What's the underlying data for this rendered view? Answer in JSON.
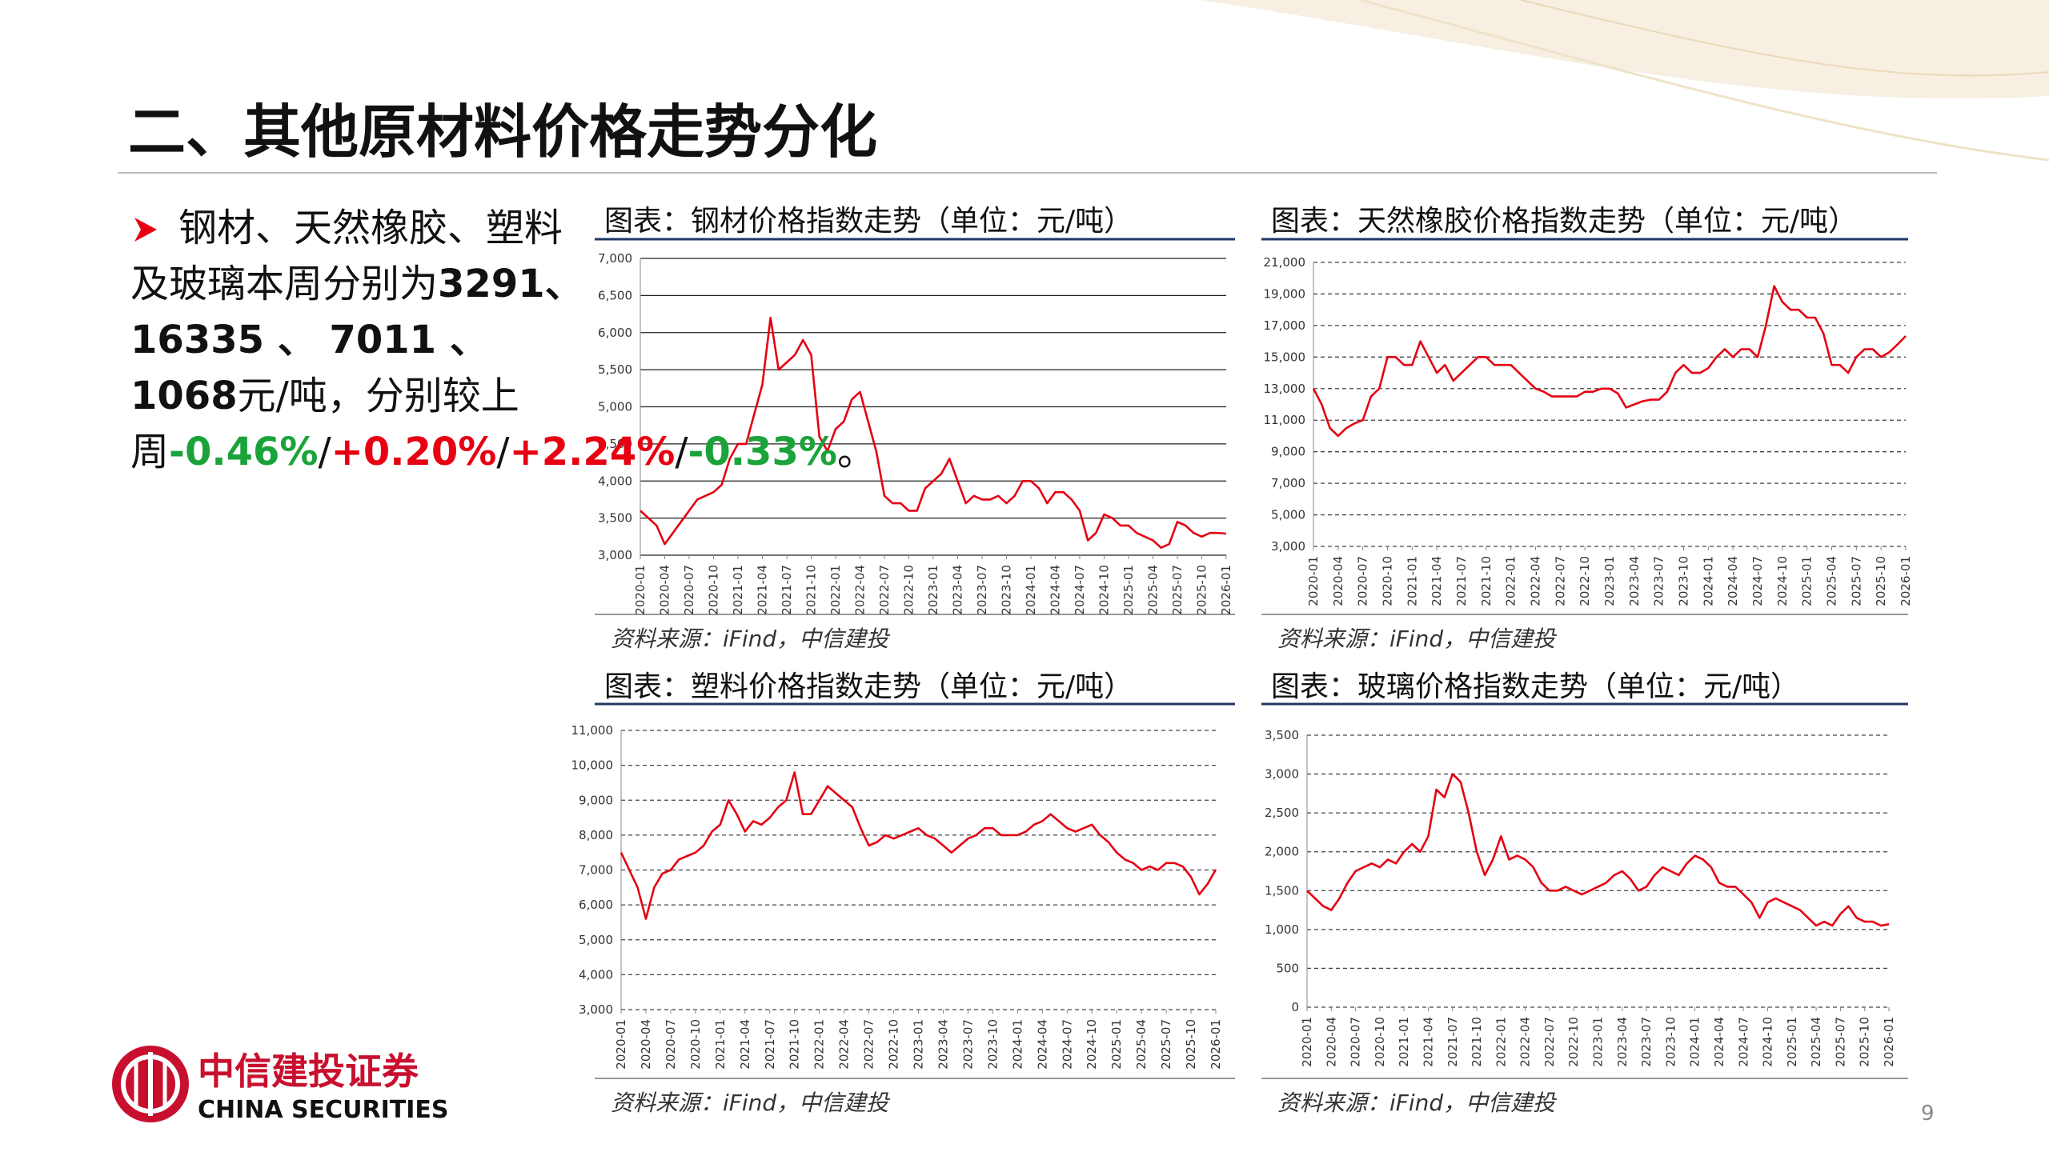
{
  "header": {
    "title": "二、其他原材料价格走势分化"
  },
  "summary": {
    "parts": [
      {
        "text": "钢材、天然橡胶、塑料及玻璃本周分别为",
        "style": "normal"
      },
      {
        "text": "3291、 16335 、 7011 、 1068",
        "style": "bold"
      },
      {
        "text": "元/吨，分别较上周",
        "style": "normal"
      },
      {
        "text": "-0.46%",
        "style": "green"
      },
      {
        "text": "/",
        "style": "normal"
      },
      {
        "text": "+0.20%",
        "style": "red"
      },
      {
        "text": "/",
        "style": "normal"
      },
      {
        "text": "+2.24%",
        "style": "red"
      },
      {
        "text": "/",
        "style": "normal"
      },
      {
        "text": "-0.33%",
        "style": "green"
      },
      {
        "text": "。",
        "style": "normal"
      }
    ]
  },
  "chart_data": [
    {
      "type": "line",
      "title": "图表：钢材价格指数走势（单位：元/吨）",
      "source": "资料来源：iFind，中信建投",
      "color": "#e60012",
      "grid": true,
      "grid_style": "solid",
      "x": [
        "2020-01",
        "2020-02",
        "2020-03",
        "2020-04",
        "2020-05",
        "2020-06",
        "2020-07",
        "2020-08",
        "2020-09",
        "2020-10",
        "2020-11",
        "2020-12",
        "2021-01",
        "2021-02",
        "2021-03",
        "2021-04",
        "2021-05",
        "2021-06",
        "2021-07",
        "2021-08",
        "2021-09",
        "2021-10",
        "2021-11",
        "2021-12",
        "2022-01",
        "2022-02",
        "2022-03",
        "2022-04",
        "2022-05",
        "2022-06",
        "2022-07",
        "2022-08",
        "2022-09",
        "2022-10",
        "2022-11",
        "2022-12",
        "2023-01",
        "2023-02",
        "2023-03",
        "2023-04",
        "2023-05",
        "2023-06",
        "2023-07",
        "2023-08",
        "2023-09",
        "2023-10",
        "2023-11",
        "2023-12",
        "2024-01",
        "2024-02",
        "2024-03",
        "2024-04",
        "2024-05",
        "2024-06",
        "2024-07",
        "2024-08",
        "2024-09",
        "2024-10",
        "2024-11",
        "2024-12",
        "2025-01",
        "2025-02",
        "2025-03",
        "2025-04",
        "2025-05",
        "2025-06",
        "2025-07",
        "2025-08",
        "2025-09",
        "2025-10",
        "2025-11",
        "2025-12",
        "2026-01"
      ],
      "values": [
        3600,
        3500,
        3400,
        3150,
        3300,
        3450,
        3600,
        3750,
        3800,
        3850,
        3950,
        4300,
        4500,
        4500,
        4900,
        5300,
        6200,
        5500,
        5600,
        5700,
        5900,
        5700,
        4600,
        4400,
        4700,
        4800,
        5100,
        5200,
        4800,
        4400,
        3800,
        3700,
        3700,
        3600,
        3600,
        3900,
        4000,
        4100,
        4300,
        4000,
        3700,
        3800,
        3750,
        3750,
        3800,
        3700,
        3800,
        4000,
        4000,
        3900,
        3700,
        3850,
        3850,
        3750,
        3600,
        3200,
        3300,
        3550,
        3500,
        3400,
        3400,
        3300,
        3250,
        3200,
        3100,
        3150,
        3450,
        3400,
        3300,
        3250,
        3300,
        3300,
        3291
      ],
      "xticks": [
        "2020-01",
        "2020-04",
        "2020-07",
        "2020-10",
        "2021-01",
        "2021-04",
        "2021-07",
        "2021-10",
        "2022-01",
        "2022-04",
        "2022-07",
        "2022-10",
        "2023-01",
        "2023-04",
        "2023-07",
        "2023-10",
        "2024-01",
        "2024-04",
        "2024-07",
        "2024-10",
        "2025-01",
        "2025-04",
        "2025-07",
        "2025-10",
        "2026-01"
      ],
      "ylim": [
        3000,
        7000
      ],
      "yticks": [
        {
          "value": 3000,
          "label": "3,000"
        },
        {
          "value": 3500,
          "label": "3,500"
        },
        {
          "value": 4000,
          "label": "4,000"
        },
        {
          "value": 4500,
          "label": "4,500"
        },
        {
          "value": 5000,
          "label": "5,000"
        },
        {
          "value": 5500,
          "label": "5,500"
        },
        {
          "value": 6000,
          "label": "6,000"
        },
        {
          "value": 6500,
          "label": "6,500"
        },
        {
          "value": 7000,
          "label": "7,000"
        }
      ]
    },
    {
      "type": "line",
      "title": "图表：天然橡胶价格指数走势（单位：元/吨）",
      "source": "资料来源：iFind，中信建投",
      "color": "#e60012",
      "grid": true,
      "grid_style": "dashed",
      "x": [
        "2020-01",
        "2020-02",
        "2020-03",
        "2020-04",
        "2020-05",
        "2020-06",
        "2020-07",
        "2020-08",
        "2020-09",
        "2020-10",
        "2020-11",
        "2020-12",
        "2021-01",
        "2021-02",
        "2021-03",
        "2021-04",
        "2021-05",
        "2021-06",
        "2021-07",
        "2021-08",
        "2021-09",
        "2021-10",
        "2021-11",
        "2021-12",
        "2022-01",
        "2022-02",
        "2022-03",
        "2022-04",
        "2022-05",
        "2022-06",
        "2022-07",
        "2022-08",
        "2022-09",
        "2022-10",
        "2022-11",
        "2022-12",
        "2023-01",
        "2023-02",
        "2023-03",
        "2023-04",
        "2023-05",
        "2023-06",
        "2023-07",
        "2023-08",
        "2023-09",
        "2023-10",
        "2023-11",
        "2023-12",
        "2024-01",
        "2024-02",
        "2024-03",
        "2024-04",
        "2024-05",
        "2024-06",
        "2024-07",
        "2024-08",
        "2024-09",
        "2024-10",
        "2024-11",
        "2024-12",
        "2025-01",
        "2025-02",
        "2025-03",
        "2025-04",
        "2025-05",
        "2025-06",
        "2025-07",
        "2025-08",
        "2025-09",
        "2025-10",
        "2025-11",
        "2025-12",
        "2026-01"
      ],
      "values": [
        13000,
        12000,
        10500,
        10000,
        10500,
        10800,
        11000,
        12500,
        13000,
        15000,
        15000,
        14500,
        14500,
        16000,
        15000,
        14000,
        14500,
        13500,
        14000,
        14500,
        15000,
        15000,
        14500,
        14500,
        14500,
        14000,
        13500,
        13000,
        12800,
        12500,
        12500,
        12500,
        12500,
        12800,
        12800,
        13000,
        13000,
        12700,
        11800,
        12000,
        12200,
        12300,
        12300,
        12800,
        14000,
        14500,
        14000,
        14000,
        14300,
        15000,
        15500,
        15000,
        15500,
        15500,
        15000,
        17000,
        19500,
        18500,
        18000,
        18000,
        17500,
        17500,
        16500,
        14500,
        14500,
        14000,
        15000,
        15500,
        15500,
        15000,
        15300,
        15800,
        16335
      ],
      "xticks": [
        "2020-01",
        "2020-04",
        "2020-07",
        "2020-10",
        "2021-01",
        "2021-04",
        "2021-07",
        "2021-10",
        "2022-01",
        "2022-04",
        "2022-07",
        "2022-10",
        "2023-01",
        "2023-04",
        "2023-07",
        "2023-10",
        "2024-01",
        "2024-04",
        "2024-07",
        "2024-10",
        "2025-01",
        "2025-04",
        "2025-07",
        "2025-10",
        "2026-01"
      ],
      "ylim": [
        3000,
        21000
      ],
      "yticks": [
        {
          "value": 3000,
          "label": "3,000"
        },
        {
          "value": 5000,
          "label": "5,000"
        },
        {
          "value": 7000,
          "label": "7,000"
        },
        {
          "value": 9000,
          "label": "9,000"
        },
        {
          "value": 11000,
          "label": "11,000"
        },
        {
          "value": 13000,
          "label": "13,000"
        },
        {
          "value": 15000,
          "label": "15,000"
        },
        {
          "value": 17000,
          "label": "17,000"
        },
        {
          "value": 19000,
          "label": "19,000"
        },
        {
          "value": 21000,
          "label": "21,000"
        }
      ]
    },
    {
      "type": "line",
      "title": "图表：塑料价格指数走势（单位：元/吨）",
      "source": "资料来源：iFind，中信建投",
      "color": "#e60012",
      "grid": true,
      "grid_style": "dashed",
      "x": [
        "2020-01",
        "2020-02",
        "2020-03",
        "2020-04",
        "2020-05",
        "2020-06",
        "2020-07",
        "2020-08",
        "2020-09",
        "2020-10",
        "2020-11",
        "2020-12",
        "2021-01",
        "2021-02",
        "2021-03",
        "2021-04",
        "2021-05",
        "2021-06",
        "2021-07",
        "2021-08",
        "2021-09",
        "2021-10",
        "2021-11",
        "2021-12",
        "2022-01",
        "2022-02",
        "2022-03",
        "2022-04",
        "2022-05",
        "2022-06",
        "2022-07",
        "2022-08",
        "2022-09",
        "2022-10",
        "2022-11",
        "2022-12",
        "2023-01",
        "2023-02",
        "2023-03",
        "2023-04",
        "2023-05",
        "2023-06",
        "2023-07",
        "2023-08",
        "2023-09",
        "2023-10",
        "2023-11",
        "2023-12",
        "2024-01",
        "2024-02",
        "2024-03",
        "2024-04",
        "2024-05",
        "2024-06",
        "2024-07",
        "2024-08",
        "2024-09",
        "2024-10",
        "2024-11",
        "2024-12",
        "2025-01",
        "2025-02",
        "2025-03",
        "2025-04",
        "2025-05",
        "2025-06",
        "2025-07",
        "2025-08",
        "2025-09",
        "2025-10",
        "2025-11",
        "2025-12",
        "2026-01"
      ],
      "values": [
        7500,
        7000,
        6500,
        5600,
        6500,
        6900,
        7000,
        7300,
        7400,
        7500,
        7700,
        8100,
        8300,
        9000,
        8600,
        8100,
        8400,
        8300,
        8500,
        8800,
        9000,
        9800,
        8600,
        8600,
        9000,
        9400,
        9200,
        9000,
        8800,
        8200,
        7700,
        7800,
        8000,
        7900,
        8000,
        8100,
        8200,
        8000,
        7900,
        7700,
        7500,
        7700,
        7900,
        8000,
        8200,
        8200,
        8000,
        8000,
        8000,
        8100,
        8300,
        8400,
        8600,
        8400,
        8200,
        8100,
        8200,
        8300,
        8000,
        7800,
        7500,
        7300,
        7200,
        7000,
        7100,
        7000,
        7200,
        7200,
        7100,
        6800,
        6300,
        6600,
        7011
      ],
      "xticks": [
        "2020-01",
        "2020-04",
        "2020-07",
        "2020-10",
        "2021-01",
        "2021-04",
        "2021-07",
        "2021-10",
        "2022-01",
        "2022-04",
        "2022-07",
        "2022-10",
        "2023-01",
        "2023-04",
        "2023-07",
        "2023-10",
        "2024-01",
        "2024-04",
        "2024-07",
        "2024-10",
        "2025-01",
        "2025-04",
        "2025-07",
        "2025-10",
        "2026-01"
      ],
      "ylim": [
        3000,
        11000
      ],
      "yticks": [
        {
          "value": 3000,
          "label": "3,000"
        },
        {
          "value": 4000,
          "label": "4,000"
        },
        {
          "value": 5000,
          "label": "5,000"
        },
        {
          "value": 6000,
          "label": "6,000"
        },
        {
          "value": 7000,
          "label": "7,000"
        },
        {
          "value": 8000,
          "label": "8,000"
        },
        {
          "value": 9000,
          "label": "9,000"
        },
        {
          "value": 10000,
          "label": "10,000"
        },
        {
          "value": 11000,
          "label": "11,000"
        }
      ]
    },
    {
      "type": "line",
      "title": "图表：玻璃价格指数走势（单位：元/吨）",
      "source": "资料来源：iFind，中信建投",
      "color": "#e60012",
      "grid": true,
      "grid_style": "dashed",
      "x": [
        "2020-01",
        "2020-02",
        "2020-03",
        "2020-04",
        "2020-05",
        "2020-06",
        "2020-07",
        "2020-08",
        "2020-09",
        "2020-10",
        "2020-11",
        "2020-12",
        "2021-01",
        "2021-02",
        "2021-03",
        "2021-04",
        "2021-05",
        "2021-06",
        "2021-07",
        "2021-08",
        "2021-09",
        "2021-10",
        "2021-11",
        "2021-12",
        "2022-01",
        "2022-02",
        "2022-03",
        "2022-04",
        "2022-05",
        "2022-06",
        "2022-07",
        "2022-08",
        "2022-09",
        "2022-10",
        "2022-11",
        "2022-12",
        "2023-01",
        "2023-02",
        "2023-03",
        "2023-04",
        "2023-05",
        "2023-06",
        "2023-07",
        "2023-08",
        "2023-09",
        "2023-10",
        "2023-11",
        "2023-12",
        "2024-01",
        "2024-02",
        "2024-03",
        "2024-04",
        "2024-05",
        "2024-06",
        "2024-07",
        "2024-08",
        "2024-09",
        "2024-10",
        "2024-11",
        "2024-12",
        "2025-01",
        "2025-02",
        "2025-03",
        "2025-04",
        "2025-05",
        "2025-06",
        "2025-07",
        "2025-08",
        "2025-09",
        "2025-10",
        "2025-11",
        "2025-12",
        "2026-01"
      ],
      "values": [
        1500,
        1400,
        1300,
        1250,
        1400,
        1600,
        1750,
        1800,
        1850,
        1800,
        1900,
        1850,
        2000,
        2100,
        2000,
        2200,
        2800,
        2700,
        3000,
        2900,
        2500,
        2000,
        1700,
        1900,
        2200,
        1900,
        1950,
        1900,
        1800,
        1600,
        1500,
        1500,
        1550,
        1500,
        1450,
        1500,
        1550,
        1600,
        1700,
        1750,
        1650,
        1500,
        1550,
        1700,
        1800,
        1750,
        1700,
        1850,
        1950,
        1900,
        1800,
        1600,
        1550,
        1550,
        1450,
        1350,
        1150,
        1350,
        1400,
        1350,
        1300,
        1250,
        1150,
        1050,
        1100,
        1050,
        1200,
        1300,
        1150,
        1100,
        1100,
        1050,
        1068
      ],
      "xticks": [
        "2020-01",
        "2020-04",
        "2020-07",
        "2020-10",
        "2021-01",
        "2021-04",
        "2021-07",
        "2021-10",
        "2022-01",
        "2022-04",
        "2022-07",
        "2022-10",
        "2023-01",
        "2023-04",
        "2023-07",
        "2023-10",
        "2024-01",
        "2024-04",
        "2024-07",
        "2024-10",
        "2025-01",
        "2025-04",
        "2025-07",
        "2025-10",
        "2026-01"
      ],
      "ylim": [
        0,
        3500
      ],
      "yticks": [
        0,
        500,
        {
          "value": 1000,
          "label": "1,000"
        },
        {
          "value": 1500,
          "label": "1,500"
        },
        {
          "value": 2000,
          "label": "2,000"
        },
        {
          "value": 2500,
          "label": "2,500"
        },
        {
          "value": 3000,
          "label": "3,000"
        },
        {
          "value": 3500,
          "label": "3,500"
        }
      ]
    }
  ],
  "footer": {
    "brand_cn": "中信建投证券",
    "brand_en": "CHINA SECURITIES",
    "page": "9"
  }
}
